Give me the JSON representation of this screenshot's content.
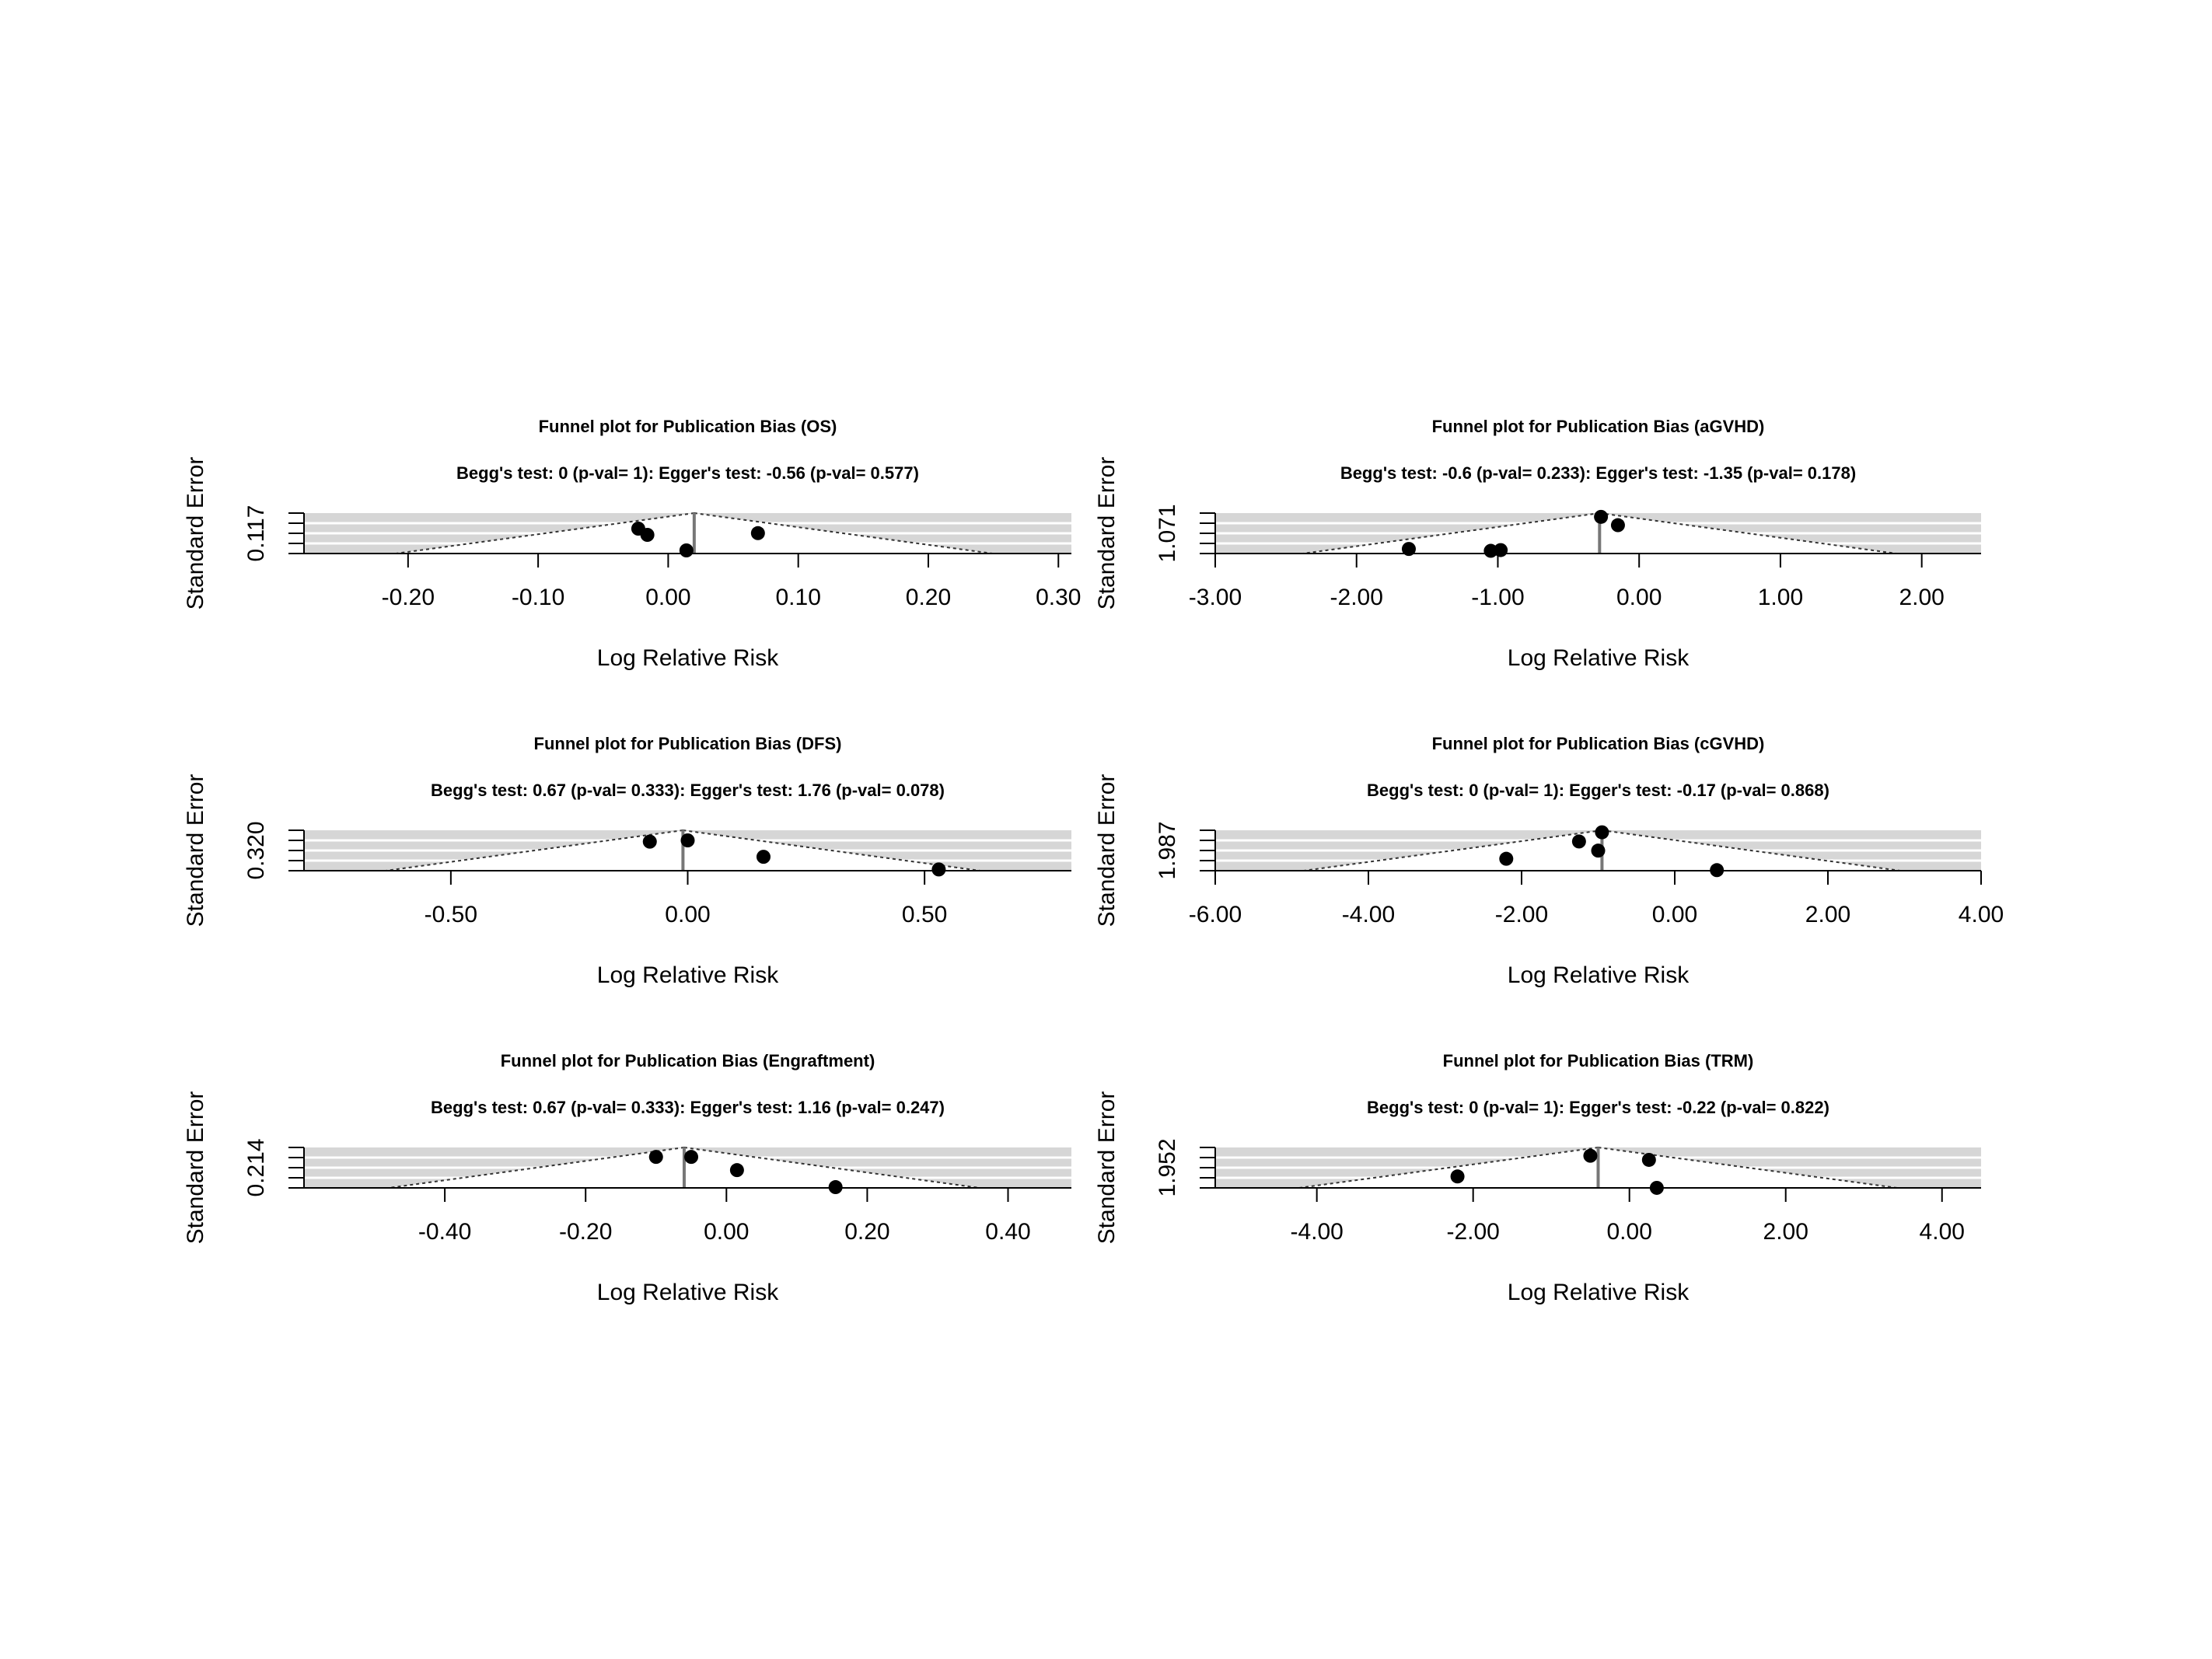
{
  "chart_data": [
    {
      "type": "scatter",
      "title": "Funnel plot for Publication Bias (OS)",
      "subtitle": "Begg's test: 0 (p-val= 1): Egger's test: -0.56 (p-val= 0.577)",
      "xlabel": "Log Relative Risk",
      "ylabel": "Standard Error",
      "xticks": [
        "-0.20",
        "-0.10",
        "0.00",
        "0.10",
        "0.20",
        "0.30"
      ],
      "ytick": "0.117",
      "xlim": [
        -0.28,
        0.31
      ],
      "ymax": 0.117,
      "summary": 0.02,
      "points": [
        {
          "x": -0.023,
          "y": 0.045
        },
        {
          "x": -0.016,
          "y": 0.063
        },
        {
          "x": 0.014,
          "y": 0.108
        },
        {
          "x": 0.069,
          "y": 0.058
        }
      ]
    },
    {
      "type": "scatter",
      "title": "Funnel plot for Publication Bias (aGVHD)",
      "subtitle": "Begg's test: -0.6 (p-val= 0.233): Egger's test: -1.35 (p-val= 0.178)",
      "xlabel": "Log Relative Risk",
      "ylabel": "Standard Error",
      "xticks": [
        "-3.00",
        "-2.00",
        "-1.00",
        "0.00",
        "1.00",
        "2.00"
      ],
      "ytick": "1.071",
      "xlim": [
        -3.0,
        2.42
      ],
      "ymax": 1.071,
      "summary": -0.28,
      "points": [
        {
          "x": -1.63,
          "y": 0.95
        },
        {
          "x": -1.05,
          "y": 1.0
        },
        {
          "x": -0.98,
          "y": 0.98
        },
        {
          "x": -0.27,
          "y": 0.1
        },
        {
          "x": -0.15,
          "y": 0.32
        }
      ]
    },
    {
      "type": "scatter",
      "title": "Funnel plot for Publication Bias (DFS)",
      "subtitle": "Begg's test: 0.67 (p-val= 0.333): Egger's test: 1.76 (p-val= 0.078)",
      "xlabel": "Log Relative Risk",
      "ylabel": "Standard Error",
      "xticks": [
        "-0.50",
        "0.00",
        "0.50"
      ],
      "ytick": "0.320",
      "xlim": [
        -0.81,
        0.81
      ],
      "ymax": 0.32,
      "summary": -0.01,
      "points": [
        {
          "x": -0.08,
          "y": 0.09
        },
        {
          "x": 0.0,
          "y": 0.08
        },
        {
          "x": 0.16,
          "y": 0.21
        },
        {
          "x": 0.53,
          "y": 0.31
        }
      ]
    },
    {
      "type": "scatter",
      "title": "Funnel plot for Publication Bias (cGVHD)",
      "subtitle": "Begg's test: 0 (p-val= 1): Egger's test: -0.17 (p-val= 0.868)",
      "xlabel": "Log Relative Risk",
      "ylabel": "Standard Error",
      "xticks": [
        "-6.00",
        "-4.00",
        "-2.00",
        "0.00",
        "2.00",
        "4.00"
      ],
      "ytick": "1.987",
      "xlim": [
        -6.0,
        4.0
      ],
      "ymax": 1.987,
      "summary": -0.95,
      "points": [
        {
          "x": -2.2,
          "y": 1.4
        },
        {
          "x": -1.25,
          "y": 0.55
        },
        {
          "x": -0.95,
          "y": 0.1
        },
        {
          "x": -1.0,
          "y": 1.0
        },
        {
          "x": 0.55,
          "y": 1.96
        }
      ]
    },
    {
      "type": "scatter",
      "title": "Funnel plot for Publication Bias (Engraftment)",
      "subtitle": "Begg's test: 0.67 (p-val= 0.333): Egger's test: 1.16 (p-val= 0.247)",
      "xlabel": "Log Relative Risk",
      "ylabel": "Standard Error",
      "xticks": [
        "-0.40",
        "-0.20",
        "0.00",
        "0.20",
        "0.40"
      ],
      "ytick": "0.214",
      "xlim": [
        -0.6,
        0.49
      ],
      "ymax": 0.214,
      "summary": -0.06,
      "points": [
        {
          "x": -0.1,
          "y": 0.05
        },
        {
          "x": -0.05,
          "y": 0.05
        },
        {
          "x": 0.015,
          "y": 0.12
        },
        {
          "x": 0.155,
          "y": 0.21
        }
      ]
    },
    {
      "type": "scatter",
      "title": "Funnel plot for Publication Bias (TRM)",
      "subtitle": "Begg's test: 0 (p-val= 1): Egger's test: -0.22 (p-val= 0.822)",
      "xlabel": "Log Relative Risk",
      "ylabel": "Standard Error",
      "xticks": [
        "-4.00",
        "-2.00",
        "0.00",
        "2.00",
        "4.00"
      ],
      "ytick": "1.952",
      "xlim": [
        -5.3,
        4.5
      ],
      "ymax": 1.952,
      "summary": -0.4,
      "points": [
        {
          "x": -2.2,
          "y": 1.4
        },
        {
          "x": -0.5,
          "y": 0.4
        },
        {
          "x": 0.25,
          "y": 0.6
        },
        {
          "x": 0.35,
          "y": 1.95
        }
      ]
    }
  ]
}
